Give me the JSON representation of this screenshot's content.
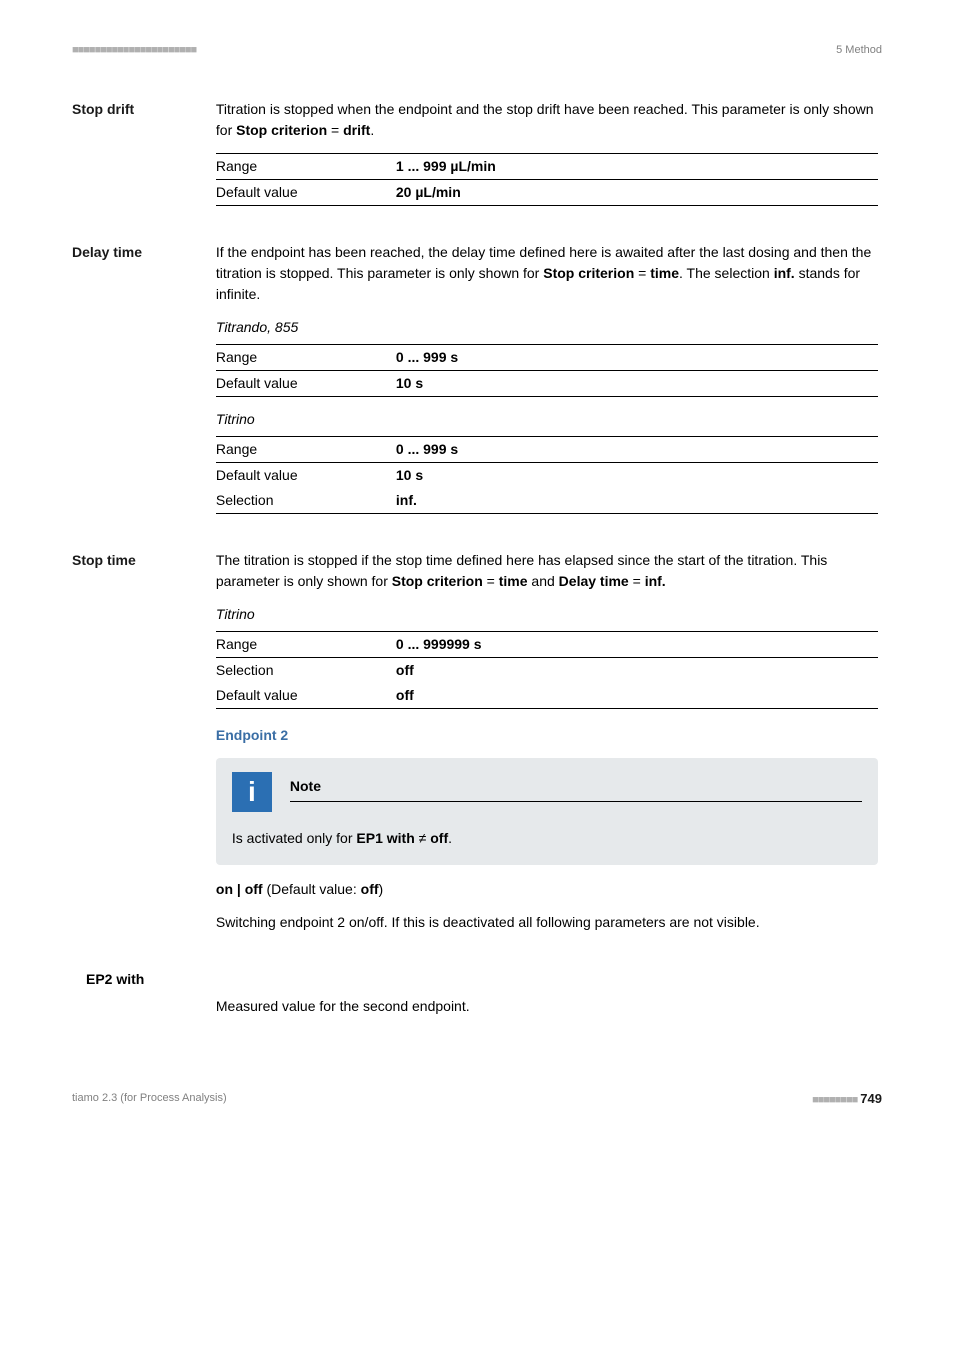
{
  "header": {
    "dashes": "■■■■■■■■■■■■■■■■■■■■■■",
    "right": "5 Method"
  },
  "stop_drift": {
    "label": "Stop drift",
    "para": "Titration is stopped when the endpoint and the stop drift have been reached. This parameter is only shown for ",
    "b1": "Stop criterion",
    "eq": " = ",
    "b2": "drift",
    "tail": ".",
    "range_k": "Range",
    "range_v": "1 ... 999 µL/min",
    "def_k": "Default value",
    "def_v": "20 µL/min"
  },
  "delay_time": {
    "label": "Delay time",
    "para1": "If the endpoint has been reached, the delay time defined here is awaited after the last dosing and then the titration is stopped. This parameter is only shown for ",
    "b1": "Stop criterion",
    "eq": " = ",
    "b2": "time",
    "mid": ". The selection ",
    "b3": "inf.",
    "tail": " stands for infinite.",
    "t1_caption": "Titrando, 855",
    "t1_range_k": "Range",
    "t1_range_v": "0 ... 999 s",
    "t1_def_k": "Default value",
    "t1_def_v": "10 s",
    "t2_caption": "Titrino",
    "t2_range_k": "Range",
    "t2_range_v": "0 ... 999 s",
    "t2_def_k": "Default value",
    "t2_def_v": "10 s",
    "t2_sel_k": "Selection",
    "t2_sel_v": "inf."
  },
  "stop_time": {
    "label": "Stop time",
    "para1": "The titration is stopped if the stop time defined here has elapsed since the start of the titration. This parameter is only shown for ",
    "b1": "Stop criterion",
    "eq1": " = ",
    "b2": "time",
    "mid": " and ",
    "b3": "Delay time",
    "eq2": " = ",
    "b4": "inf.",
    "t_caption": "Titrino",
    "range_k": "Range",
    "range_v": "0 ... 999999 s",
    "sel_k": "Selection",
    "sel_v": "off",
    "def_k": "Default value",
    "def_v": "off"
  },
  "endpoint2": {
    "heading": "Endpoint 2",
    "note_label": "Note",
    "note_body_pre": "Is activated only for ",
    "note_b1": "EP1 with",
    "note_neq": " ≠ ",
    "note_b2": "off",
    "note_tail": ".",
    "onoff_b1": "on | off",
    "onoff_mid": " (Default value: ",
    "onoff_b2": "off",
    "onoff_tail": ")",
    "para": "Switching endpoint 2 on/off. If this is deactivated all following parameters are not visible."
  },
  "ep2_with": {
    "label": "EP2 with",
    "para": "Measured value for the second endpoint."
  },
  "footer": {
    "left": "tiamo 2.3 (for Process Analysis)",
    "dashes": "■■■■■■■■",
    "page": "749"
  }
}
